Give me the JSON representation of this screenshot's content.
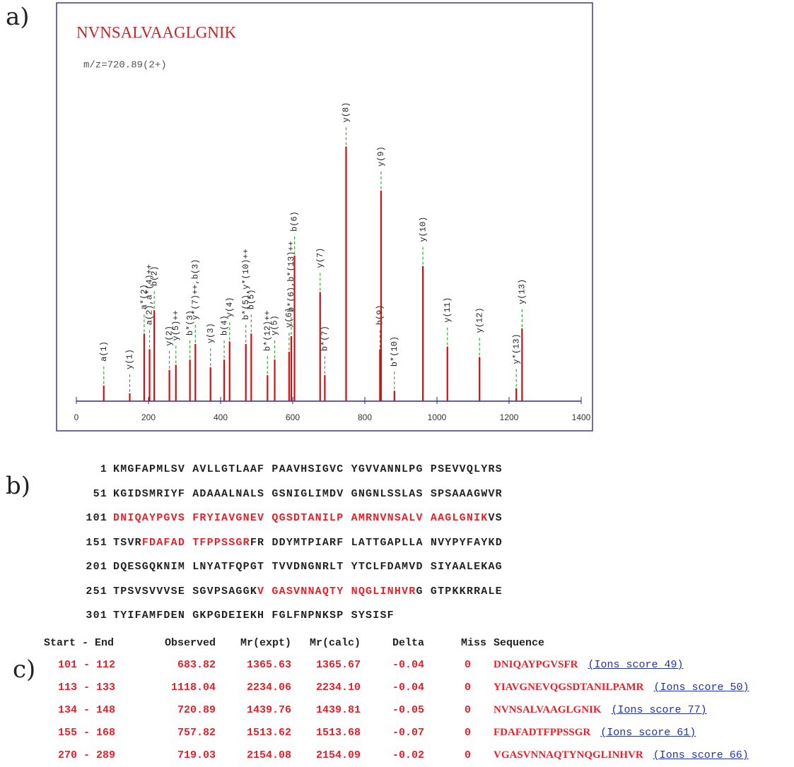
{
  "panel_labels": [
    "a)",
    "b)",
    "c)"
  ],
  "chart_data": {
    "type": "spectrum",
    "title": "NVNSALVAAGLGNIK",
    "subtitle": "m/z=720.89(2+)",
    "x": [
      76,
      148,
      188,
      203,
      216,
      258,
      276,
      315,
      330,
      372,
      410,
      425,
      470,
      485,
      530,
      550,
      590,
      596,
      605,
      676,
      689,
      748,
      842,
      845,
      882,
      961,
      1029,
      1118,
      1220,
      1236
    ],
    "values": [
      6,
      3,
      26,
      20,
      35,
      12,
      14,
      16,
      22,
      13,
      16,
      23,
      22,
      26,
      10,
      16,
      19,
      25,
      56,
      42,
      10,
      98,
      20,
      81,
      4,
      52,
      21,
      17,
      5,
      28
    ],
    "peak_labels": [
      "a(1)",
      "y(1)",
      "a*(2)",
      "a(2),a*(4)++",
      "b(2)",
      "y(2)",
      "y(5)++",
      "b*(3)",
      "y*(7)++,b(3)",
      "y(3)",
      "b(4)",
      "y(4)",
      "b*(5),y*(10)++",
      "b(5)",
      "b*(12)++",
      "y(5)",
      "y(6)",
      "b*(6),b*(13)++",
      "b(6)",
      "y(7)",
      "b*(7)",
      "y(8)",
      "b(9)",
      "y(9)",
      "b*(10)",
      "y(10)",
      "y(11)",
      "y(12)",
      "y*(13)",
      "y(13)"
    ],
    "xlim": [
      0,
      1400
    ],
    "xticks": [
      0,
      200,
      400,
      600,
      800,
      1000,
      1200,
      1400
    ],
    "ylim": [
      0,
      100
    ],
    "color": "#cc1111",
    "annotation_color": "#3aaa3a",
    "frame_color": "#3a3a9a",
    "axis_color": "#2a2aa0"
  },
  "sequence": {
    "highlight_color": "#e8202a",
    "rows": [
      {
        "start": 1,
        "segments": [
          {
            "text": "KMGFAPMLSV AVLLGTLAAF PAAVHSIGVC YGVVANNLPG PSEVVQLYRS",
            "highlight": false
          }
        ]
      },
      {
        "start": 51,
        "segments": [
          {
            "text": "KGIDSMRIYF ADAAALNALS GSNIGLIMDV GNGNLSSLAS SPSAAAGWVR",
            "highlight": false
          }
        ]
      },
      {
        "start": 101,
        "segments": [
          {
            "text": "DNIQAYPGVS FRYIAVGNEV QGSDTANILP AMRNVNSALV AAGLGNIK",
            "highlight": true
          },
          {
            "text": "VS",
            "highlight": false
          }
        ]
      },
      {
        "start": 151,
        "segments": [
          {
            "text": "TSVR",
            "highlight": false
          },
          {
            "text": "FDAFAD TFPPSSGR",
            "highlight": true
          },
          {
            "text": "FR DDYMTPIARF LATTGAPLLA NVYPYFAYKD",
            "highlight": false
          }
        ]
      },
      {
        "start": 201,
        "segments": [
          {
            "text": "DQESGQKNIM LNYATFQPGT TVVDNGNRLT YTCLFDAMVD SIYAALEKAG",
            "highlight": false
          }
        ]
      },
      {
        "start": 251,
        "segments": [
          {
            "text": "TPSVSVVVSE SGVPSAGGK",
            "highlight": false
          },
          {
            "text": "V GASVNNAQTY NQGLINHVR",
            "highlight": true
          },
          {
            "text": "G GTPKKRRALE",
            "highlight": false
          }
        ]
      },
      {
        "start": 301,
        "segments": [
          {
            "text": "TYIFAMFDEN GKPGDEIEKH FGLFNPNKSP SYSISF",
            "highlight": false
          }
        ]
      }
    ]
  },
  "table": {
    "header": [
      "Start - End",
      "Observed",
      "Mr(expt)",
      "Mr(calc)",
      "Delta",
      "Miss",
      "Sequence"
    ],
    "rows": [
      [
        "101 - 112",
        "683.82",
        "1365.63",
        "1365.67",
        "-0.04",
        "0",
        "DNIQAYPGVSFR",
        "(Ions score 49)"
      ],
      [
        "113 - 133",
        "1118.04",
        "2234.06",
        "2234.10",
        "-0.04",
        "0",
        "YIAVGNEVQGSDTANILPAMR",
        "(Ions score 50)"
      ],
      [
        "134 - 148",
        "720.89",
        "1439.76",
        "1439.81",
        "-0.05",
        "0",
        "NVNSALVAAGLGNIK",
        "(Ions score 77)"
      ],
      [
        "155 - 168",
        "757.82",
        "1513.62",
        "1513.68",
        "-0.07",
        "0",
        "FDAFADTFPPSSGR",
        "(Ions score 61)"
      ],
      [
        "270 - 289",
        "719.03",
        "2154.08",
        "2154.09",
        "-0.02",
        "0",
        "VGASVNNAQTYNQGLINHVR",
        "(Ions score 66)"
      ]
    ]
  }
}
